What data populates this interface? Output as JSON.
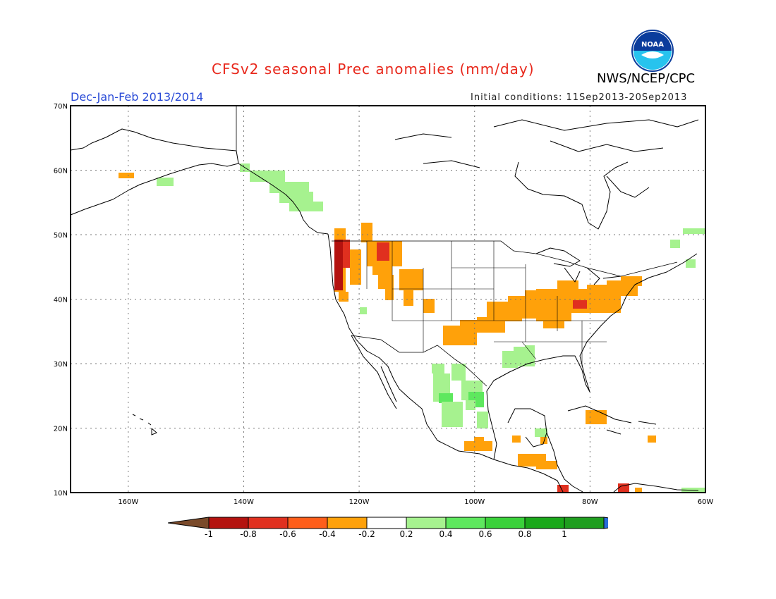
{
  "title": "CFSv2 seasonal Prec anomalies (mm/day)",
  "season": "Dec-Jan-Feb 2013/2014",
  "initial_conditions": "Initial conditions: 11Sep2013-20Sep2013",
  "agency": "NWS/NCEP/CPC",
  "logo_text": "NOAA",
  "lat_labels": [
    "70N",
    "60N",
    "50N",
    "40N",
    "30N",
    "20N",
    "10N"
  ],
  "lon_labels": [
    "160W",
    "140W",
    "120W",
    "100W",
    "80W",
    "60W"
  ],
  "colorbar": {
    "labels": [
      "-1",
      "-0.8",
      "-0.6",
      "-0.4",
      "-0.2",
      "0.2",
      "0.4",
      "0.6",
      "0.8",
      "1"
    ],
    "colors": [
      "#7a4a2a",
      "#b4120f",
      "#e0301f",
      "#ff5e1a",
      "#ffa10a",
      "#ffffff",
      "#a6f28f",
      "#5ee85e",
      "#3ad13a",
      "#1aa81a",
      "#1f9e1f",
      "#2a6ed8"
    ]
  },
  "map_extent": {
    "lon_min": -170,
    "lon_max": -60,
    "lat_min": 10,
    "lat_max": 70
  }
}
